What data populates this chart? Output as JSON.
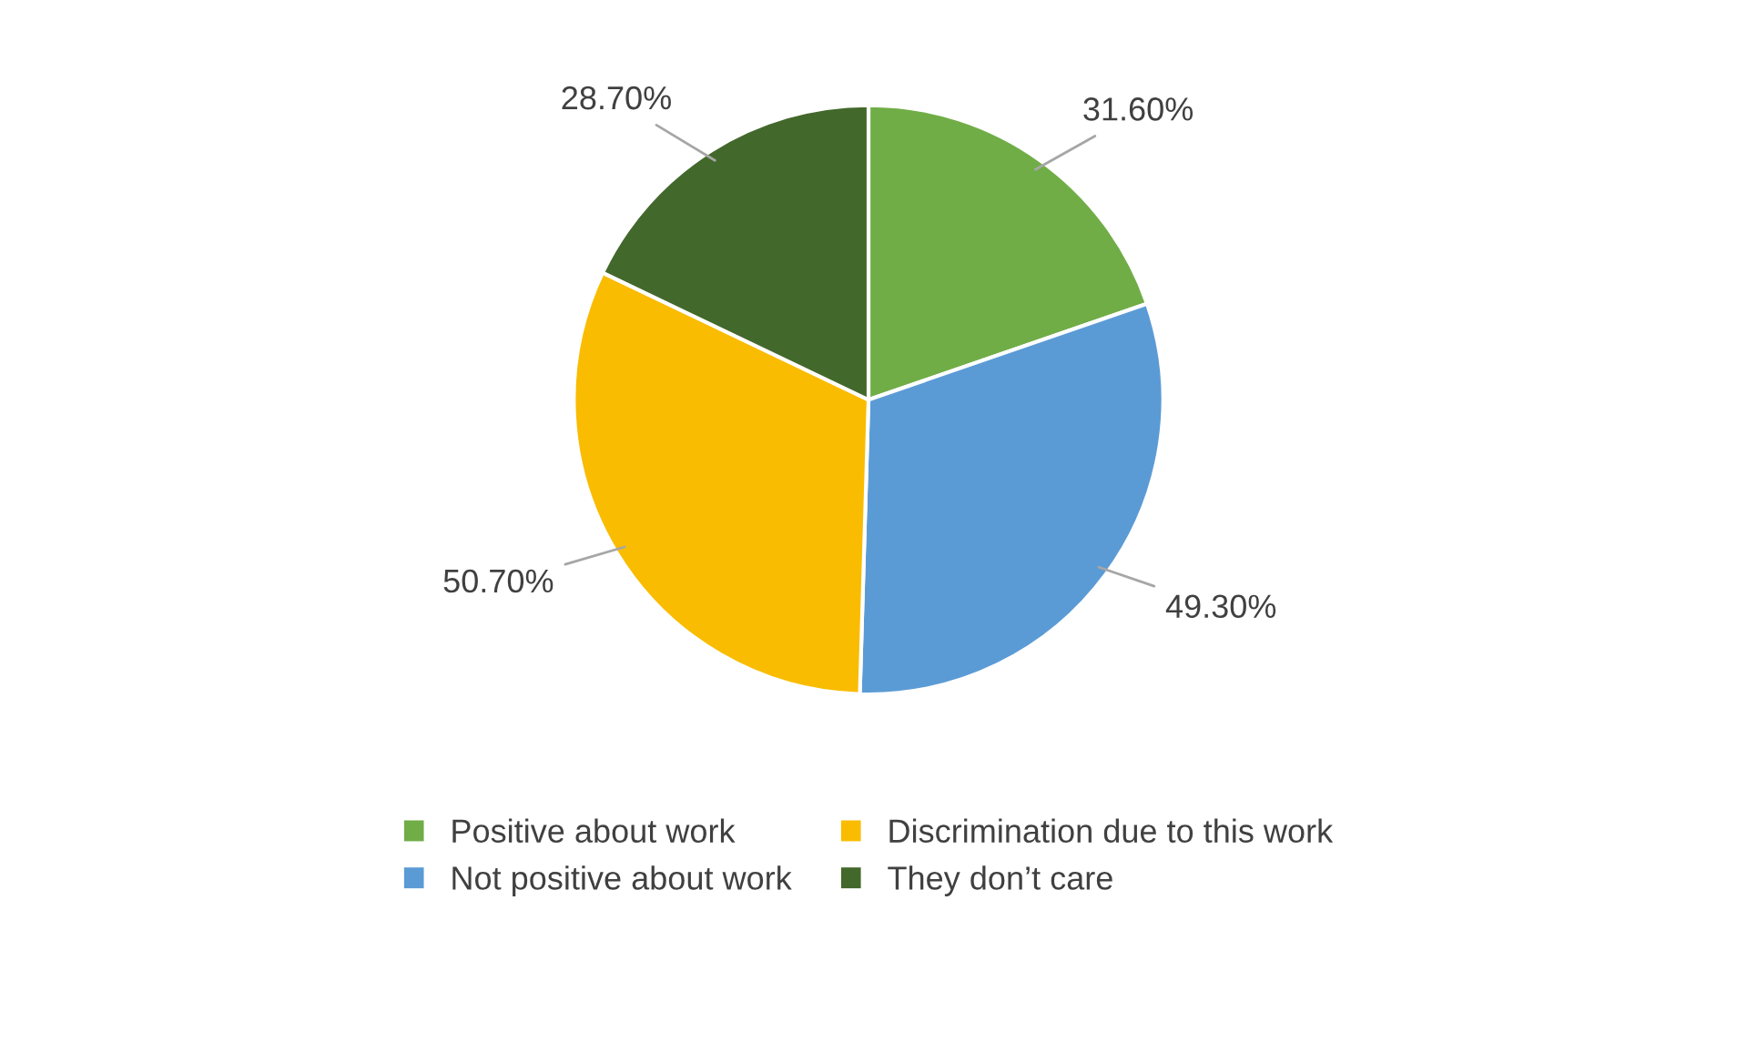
{
  "chart_data": {
    "type": "pie",
    "categories": [
      "Positive about work",
      "Not positive about work",
      "Discrimination due to this work",
      "They don’t care"
    ],
    "values": [
      31.6,
      49.3,
      50.7,
      28.7
    ],
    "colors": [
      "#70ad47",
      "#5b9bd5",
      "#f9bc00",
      "#43682b"
    ],
    "value_labels": [
      "31.60%",
      "49.30%",
      "50.70%",
      "28.70%"
    ],
    "legend": "bottom"
  }
}
